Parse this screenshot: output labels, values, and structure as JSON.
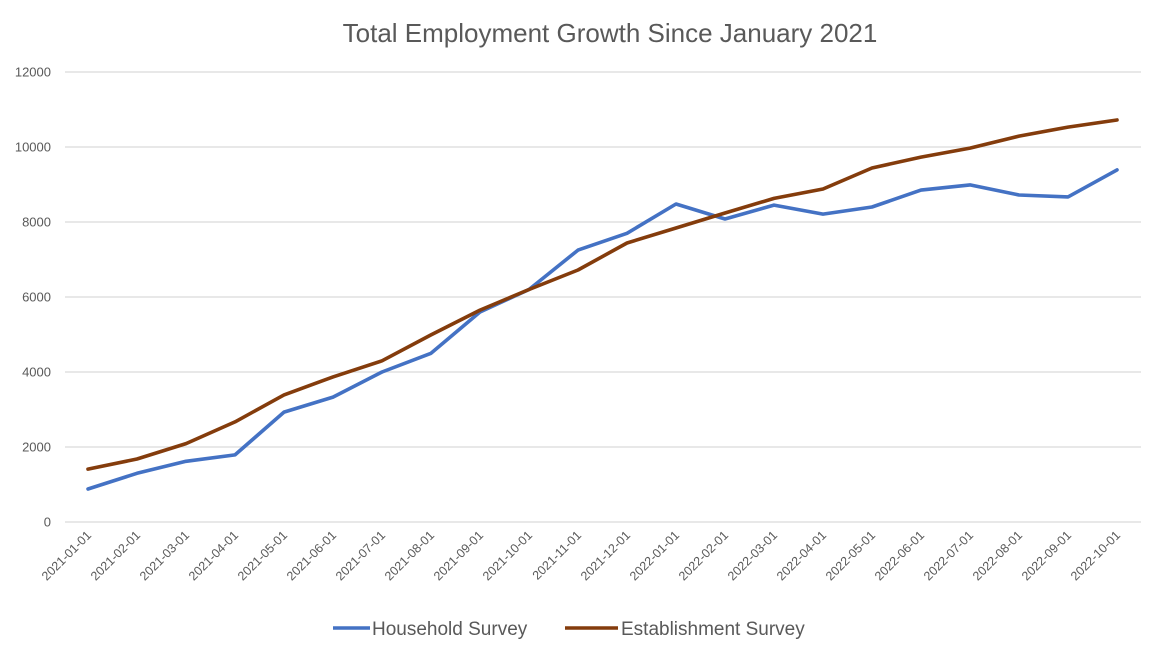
{
  "chart_data": {
    "type": "line",
    "title": "Total Employment Growth Since January 2021",
    "xlabel": "",
    "ylabel": "",
    "ylim": [
      0,
      12000
    ],
    "yticks": [
      0,
      2000,
      4000,
      6000,
      8000,
      10000,
      12000
    ],
    "grid": true,
    "legend_position": "bottom",
    "x": [
      "2021-01-01",
      "2021-02-01",
      "2021-03-01",
      "2021-04-01",
      "2021-05-01",
      "2021-06-01",
      "2021-07-01",
      "2021-08-01",
      "2021-09-01",
      "2021-10-01",
      "2021-11-01",
      "2021-12-01",
      "2022-01-01",
      "2022-02-01",
      "2022-03-01",
      "2022-04-01",
      "2022-05-01",
      "2022-06-01",
      "2022-07-01",
      "2022-08-01",
      "2022-09-01",
      "2022-10-01"
    ],
    "series": [
      {
        "name": "Household Survey",
        "color": "#4472c4",
        "values": [
          880,
          1300,
          1620,
          1790,
          2930,
          3330,
          4000,
          4500,
          5600,
          6200,
          7250,
          7700,
          8480,
          8080,
          8450,
          8210,
          8400,
          8850,
          8990,
          8720,
          8670,
          9390
        ]
      },
      {
        "name": "Establishment Survey",
        "color": "#843c0c",
        "values": [
          1410,
          1680,
          2090,
          2670,
          3390,
          3870,
          4300,
          4990,
          5650,
          6200,
          6720,
          7440,
          7840,
          8240,
          8630,
          8880,
          9440,
          9730,
          9970,
          10290,
          10530,
          10720
        ]
      }
    ]
  }
}
